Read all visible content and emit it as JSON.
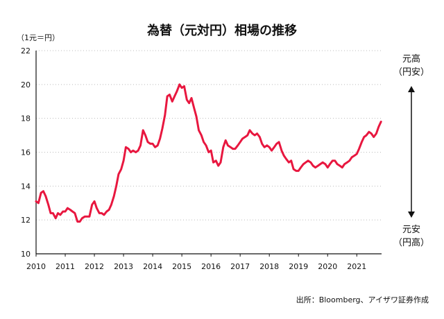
{
  "title": "為替（元対円）相場の推移",
  "unit_label": "（1元＝円）",
  "source": "出所：Bloomberg、アイザワ証券作成",
  "annotations": {
    "top_line1": "元高",
    "top_line2": "（円安）",
    "bottom_line1": "元安",
    "bottom_line2": "（円高）"
  },
  "colors": {
    "line": "#e8173f",
    "axis": "#111111",
    "grid": "#bbbbbb"
  },
  "chart_data": {
    "type": "line",
    "title": "為替（元対円）相場の推移",
    "ylabel": "（1元＝円）",
    "xlabel": "",
    "ylim": [
      10,
      22
    ],
    "xlim": [
      2010,
      2021.85
    ],
    "yticks": [
      10,
      12,
      14,
      16,
      18,
      20,
      22
    ],
    "xticks": [
      "2010",
      "2011",
      "2012",
      "2013",
      "2014",
      "2015",
      "2016",
      "2017",
      "2018",
      "2019",
      "2020",
      "2021"
    ],
    "grid": "horizontal dotted",
    "series": [
      {
        "x": [
          2010.0,
          2010.08,
          2010.17,
          2010.25,
          2010.33,
          2010.42,
          2010.5,
          2010.58,
          2010.67,
          2010.75,
          2010.83,
          2010.92,
          2011.0,
          2011.08,
          2011.17,
          2011.25,
          2011.33,
          2011.42,
          2011.5,
          2011.58,
          2011.67,
          2011.75,
          2011.83,
          2011.92,
          2012.0,
          2012.08,
          2012.17,
          2012.25,
          2012.33,
          2012.42,
          2012.5,
          2012.58,
          2012.67,
          2012.75,
          2012.83,
          2012.92,
          2013.0,
          2013.08,
          2013.17,
          2013.25,
          2013.33,
          2013.42,
          2013.5,
          2013.58,
          2013.67,
          2013.75,
          2013.83,
          2013.92,
          2014.0,
          2014.08,
          2014.17,
          2014.25,
          2014.33,
          2014.42,
          2014.5,
          2014.58,
          2014.67,
          2014.75,
          2014.83,
          2014.92,
          2015.0,
          2015.08,
          2015.17,
          2015.25,
          2015.33,
          2015.42,
          2015.5,
          2015.58,
          2015.67,
          2015.75,
          2015.83,
          2015.92,
          2016.0,
          2016.08,
          2016.17,
          2016.25,
          2016.33,
          2016.42,
          2016.5,
          2016.58,
          2016.67,
          2016.75,
          2016.83,
          2016.92,
          2017.0,
          2017.08,
          2017.17,
          2017.25,
          2017.33,
          2017.42,
          2017.5,
          2017.58,
          2017.67,
          2017.75,
          2017.83,
          2017.92,
          2018.0,
          2018.08,
          2018.17,
          2018.25,
          2018.33,
          2018.42,
          2018.5,
          2018.58,
          2018.67,
          2018.75,
          2018.83,
          2018.92,
          2019.0,
          2019.08,
          2019.17,
          2019.25,
          2019.33,
          2019.42,
          2019.5,
          2019.58,
          2019.67,
          2019.75,
          2019.83,
          2019.92,
          2020.0,
          2020.08,
          2020.17,
          2020.25,
          2020.33,
          2020.42,
          2020.5,
          2020.58,
          2020.67,
          2020.75,
          2020.83,
          2020.92,
          2021.0,
          2021.08,
          2021.17,
          2021.25,
          2021.33,
          2021.42,
          2021.5,
          2021.58,
          2021.67,
          2021.75,
          2021.83
        ],
        "values": [
          13.1,
          13.0,
          13.6,
          13.7,
          13.4,
          12.9,
          12.4,
          12.4,
          12.1,
          12.4,
          12.3,
          12.5,
          12.5,
          12.7,
          12.6,
          12.5,
          12.4,
          11.9,
          11.9,
          12.1,
          12.2,
          12.2,
          12.2,
          12.9,
          13.1,
          12.7,
          12.4,
          12.4,
          12.3,
          12.5,
          12.6,
          12.9,
          13.4,
          14.0,
          14.7,
          15.0,
          15.5,
          16.3,
          16.2,
          16.0,
          16.1,
          16.0,
          16.1,
          16.4,
          17.3,
          17.0,
          16.6,
          16.5,
          16.5,
          16.3,
          16.4,
          16.8,
          17.4,
          18.2,
          19.3,
          19.4,
          19.0,
          19.3,
          19.6,
          20.0,
          19.8,
          19.9,
          19.1,
          18.9,
          19.2,
          18.6,
          18.1,
          17.3,
          17.0,
          16.6,
          16.4,
          16.0,
          16.1,
          15.4,
          15.5,
          15.2,
          15.4,
          16.3,
          16.7,
          16.4,
          16.3,
          16.2,
          16.2,
          16.4,
          16.6,
          16.8,
          16.9,
          17.0,
          17.3,
          17.1,
          17.0,
          17.1,
          16.9,
          16.5,
          16.3,
          16.4,
          16.3,
          16.1,
          16.3,
          16.5,
          16.6,
          16.1,
          15.8,
          15.6,
          15.4,
          15.5,
          15.0,
          14.9,
          14.9,
          15.1,
          15.3,
          15.4,
          15.5,
          15.4,
          15.2,
          15.1,
          15.2,
          15.3,
          15.4,
          15.3,
          15.1,
          15.3,
          15.5,
          15.5,
          15.3,
          15.2,
          15.1,
          15.3,
          15.4,
          15.5,
          15.7,
          15.8,
          15.9,
          16.2,
          16.6,
          16.9,
          17.0,
          17.2,
          17.1,
          16.9,
          17.1,
          17.5,
          17.8
        ]
      }
    ]
  }
}
